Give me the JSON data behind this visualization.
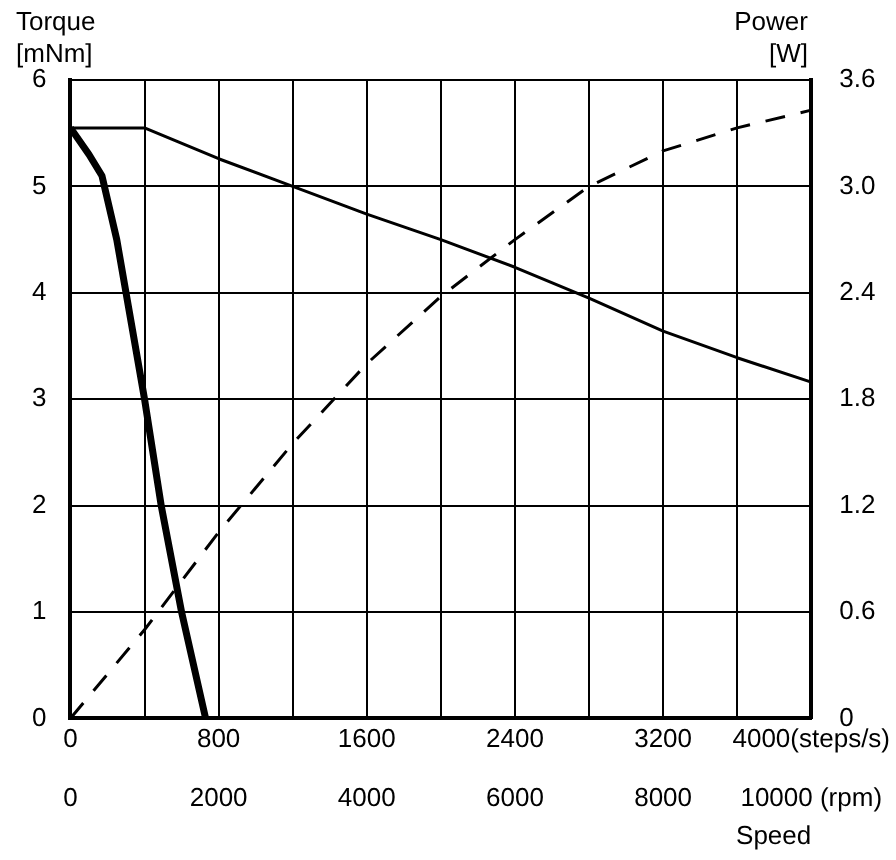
{
  "chart_data": {
    "type": "line",
    "xlabel": "Speed",
    "ylabel": "Torque [mNm]",
    "y2label": "Power [W]",
    "xlim": [
      0,
      4000
    ],
    "xticks": [
      0,
      {
        "value": 400,
        "label": null
      },
      800,
      {
        "value": 1200,
        "label": null
      },
      1600,
      {
        "value": 2000,
        "label": null
      },
      2400,
      {
        "value": 2800,
        "label": null
      },
      3200,
      {
        "value": 3600,
        "label": null
      },
      {
        "value": 4000,
        "label": "4000(steps/s)"
      }
    ],
    "x2lim": [
      0,
      10000
    ],
    "x2ticks": [
      0,
      2000,
      4000,
      6000,
      8000,
      {
        "value": 10000,
        "label": "10000 (rpm)"
      }
    ],
    "ylim": [
      0,
      6
    ],
    "yticks": [
      0,
      1,
      2,
      3,
      4,
      5,
      6
    ],
    "y2lim": [
      0,
      3.6
    ],
    "y2ticks": [
      0,
      0.6,
      1.2,
      1.8,
      2.4,
      {
        "value": 3.0,
        "label": "3.0"
      },
      3.6
    ],
    "grid": true,
    "marker": "none",
    "series": [
      {
        "color": "#000000",
        "line_style": "solid",
        "x": [
          0,
          400,
          800,
          1200,
          1600,
          2000,
          2400,
          2800,
          3200,
          3600,
          4000
        ],
        "values": [
          5.55,
          5.55,
          5.26,
          5.0,
          4.74,
          4.5,
          4.24,
          3.95,
          3.64,
          3.39,
          3.16
        ]
      },
      {
        "color": "#000000",
        "line_style": "solid",
        "x": [
          0,
          100,
          170,
          250,
          330,
          400,
          490,
          600,
          730
        ],
        "values": [
          5.55,
          5.3,
          5.1,
          4.5,
          3.7,
          3.0,
          2.0,
          1.0,
          0
        ]
      },
      {
        "color": "#000000",
        "line_style": "dashed",
        "axis": "y2",
        "x": [
          0,
          400,
          800,
          1200,
          1600,
          2000,
          2400,
          2800,
          3200,
          3600,
          4000
        ],
        "values": [
          0,
          0.5,
          1.05,
          1.55,
          2.0,
          2.38,
          2.7,
          3.0,
          3.2,
          3.33,
          3.43
        ]
      }
    ]
  }
}
